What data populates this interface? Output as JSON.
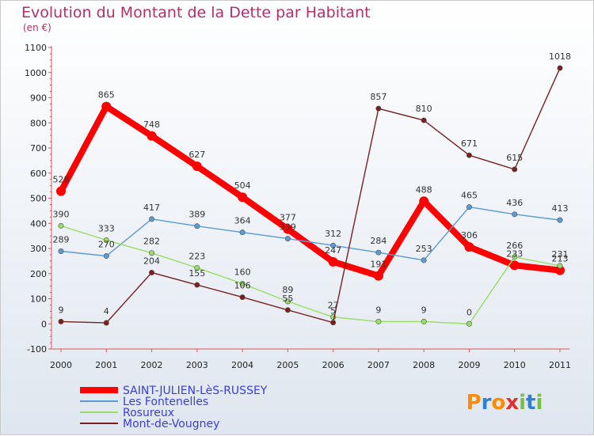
{
  "title": "Evolution du Montant de la Dette par Habitant",
  "unit": "(en €)",
  "brand": "Proxiti",
  "chart_data": {
    "type": "line",
    "x": [
      "2000",
      "2001",
      "2002",
      "2003",
      "2004",
      "2005",
      "2006",
      "2007",
      "2008",
      "2009",
      "2010",
      "2011"
    ],
    "ylim": [
      -100,
      1100
    ],
    "yticks": [
      -100,
      0,
      100,
      200,
      300,
      400,
      500,
      600,
      700,
      800,
      900,
      1000,
      1100
    ],
    "grid": false,
    "legend_position": "bottom-left",
    "series": [
      {
        "name": "SAINT-JULIEN-LèS-RUSSEY",
        "color": "#ff0000",
        "values": [
          528,
          865,
          748,
          627,
          504,
          377,
          247,
          191,
          488,
          306,
          233,
          213
        ]
      },
      {
        "name": "Les Fontenelles",
        "color": "#5b9bd5",
        "values": [
          289,
          270,
          417,
          389,
          364,
          339,
          312,
          284,
          253,
          465,
          436,
          413
        ]
      },
      {
        "name": "Rosureux",
        "color": "#99dd66",
        "values": [
          390,
          333,
          282,
          223,
          160,
          89,
          27,
          9,
          9,
          0,
          266,
          231
        ]
      },
      {
        "name": "Mont-de-Vougney",
        "color": "#7a1f1f",
        "values": [
          9,
          4,
          204,
          155,
          106,
          55,
          5,
          857,
          810,
          671,
          615,
          1018
        ]
      }
    ]
  }
}
